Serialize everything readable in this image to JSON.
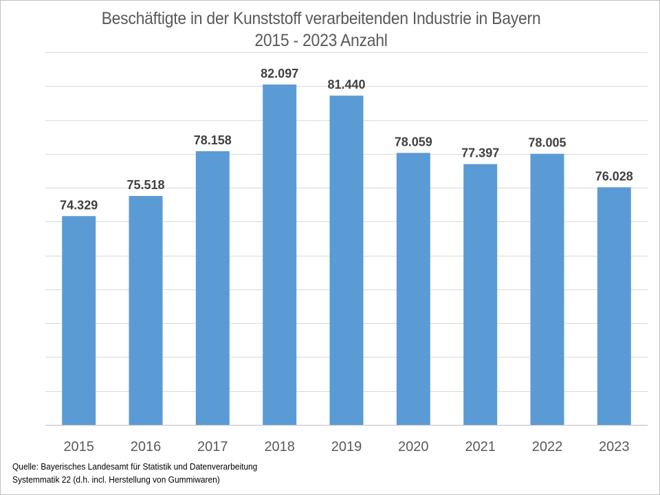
{
  "chart_data": {
    "type": "bar",
    "title": "Beschäftigte in der Kunststoff verarbeitenden Industrie in Bayern",
    "subtitle": "2015 - 2023 Anzahl",
    "categories": [
      "2015",
      "2016",
      "2017",
      "2018",
      "2019",
      "2020",
      "2021",
      "2022",
      "2023"
    ],
    "values": [
      74329,
      75518,
      78158,
      82097,
      81440,
      78059,
      77397,
      78005,
      76028
    ],
    "value_labels": [
      "74.329",
      "75.518",
      "78.158",
      "82.097",
      "81.440",
      "78.059",
      "77.397",
      "78.005",
      "76.028"
    ],
    "ylim": [
      62000,
      84000
    ],
    "y_gridline_step": 2000,
    "y_tick_labels_shown": false,
    "grid": true,
    "bar_color": "#5b9bd5",
    "xlabel": "",
    "ylabel": ""
  },
  "footnote": {
    "source": "Quelle:  Bayerisches Landesamt für Statistik und Datenverarbeitung",
    "note": "Systemmatik 22 (d.h. incl. Herstellung von Gummiwaren)"
  }
}
